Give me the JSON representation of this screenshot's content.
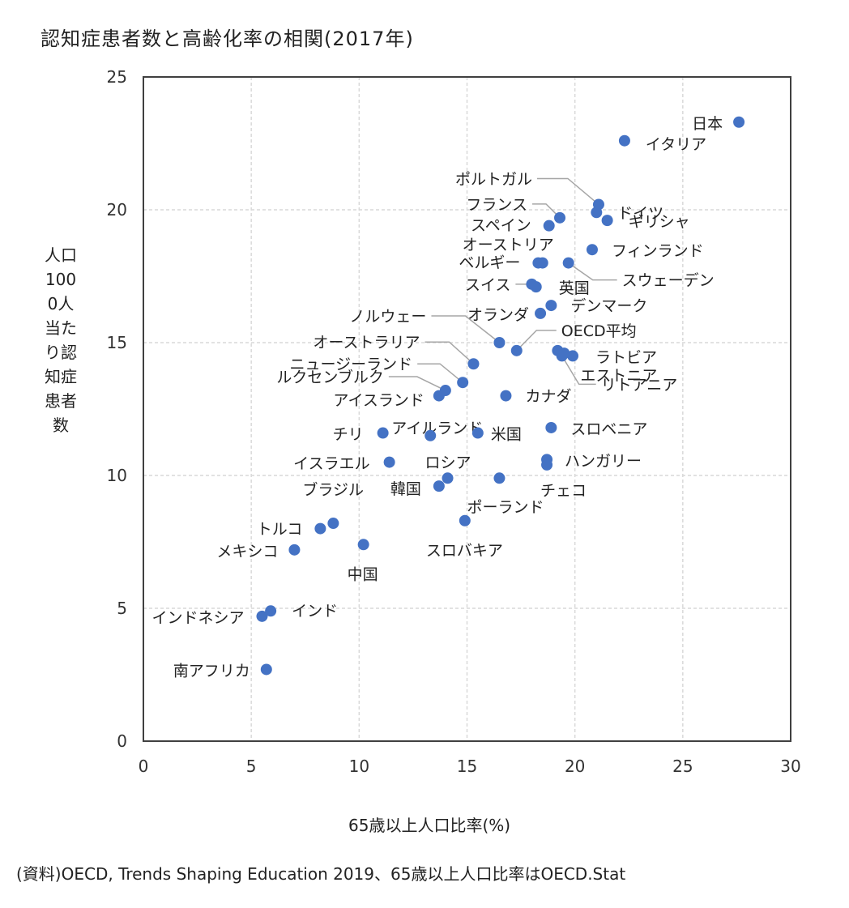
{
  "chart_data": {
    "type": "scatter",
    "title": "認知症患者数と高齢化率の相関(2017年)",
    "xlabel": "65歳以上人口比率(%)",
    "ylabel": "人口1000人当たり認知症患者数",
    "source": "(資料)OECD, Trends Shaping Education 2019、65歳以上人口比率はOECD.Stat",
    "xlim": [
      0,
      30
    ],
    "ylim": [
      0,
      25
    ],
    "xticks": [
      0,
      5,
      10,
      15,
      20,
      25,
      30
    ],
    "yticks": [
      0,
      5,
      10,
      15,
      20,
      25
    ],
    "grid": true,
    "marker_color": "#4472c4",
    "points": [
      {
        "label": "日本",
        "x": 27.6,
        "y": 23.3
      },
      {
        "label": "イタリア",
        "x": 22.3,
        "y": 22.6
      },
      {
        "label": "ポルトガル",
        "x": 21.1,
        "y": 20.2
      },
      {
        "label": "ドイツ",
        "x": 21.0,
        "y": 19.9
      },
      {
        "label": "ギリシャ",
        "x": 21.5,
        "y": 19.6
      },
      {
        "label": "フランス",
        "x": 19.3,
        "y": 19.7
      },
      {
        "label": "スペイン",
        "x": 18.8,
        "y": 19.4
      },
      {
        "label": "フィンランド",
        "x": 20.8,
        "y": 18.5
      },
      {
        "label": "オーストリア",
        "x": 18.5,
        "y": 18.0
      },
      {
        "label": "ベルギー",
        "x": 18.3,
        "y": 18.0
      },
      {
        "label": "スウェーデン",
        "x": 19.7,
        "y": 18.0
      },
      {
        "label": "スイス",
        "x": 18.0,
        "y": 17.2
      },
      {
        "label": "英国",
        "x": 18.2,
        "y": 17.1
      },
      {
        "label": "デンマーク",
        "x": 18.9,
        "y": 16.4
      },
      {
        "label": "オランダ",
        "x": 18.4,
        "y": 16.1
      },
      {
        "label": "ノルウェー",
        "x": 16.5,
        "y": 15.0
      },
      {
        "label": "OECD平均",
        "x": 17.3,
        "y": 14.7
      },
      {
        "label": "ラトビア",
        "x": 19.9,
        "y": 14.5
      },
      {
        "label": "リトアニア",
        "x": 19.4,
        "y": 14.5
      },
      {
        "label": "",
        "x": 19.2,
        "y": 14.7
      },
      {
        "label": "オーストラリア",
        "x": 15.3,
        "y": 14.2
      },
      {
        "label": "エストニア",
        "x": 19.5,
        "y": 14.6
      },
      {
        "label": "ニュージーランド",
        "x": 14.8,
        "y": 13.5
      },
      {
        "label": "ルクセンブルク",
        "x": 14.0,
        "y": 13.2
      },
      {
        "label": "アイスランド",
        "x": 13.7,
        "y": 13.0
      },
      {
        "label": "カナダ",
        "x": 16.8,
        "y": 13.0
      },
      {
        "label": "チリ",
        "x": 11.1,
        "y": 11.6
      },
      {
        "label": "アイルランド",
        "x": 13.3,
        "y": 11.5
      },
      {
        "label": "米国",
        "x": 15.5,
        "y": 11.6
      },
      {
        "label": "スロベニア",
        "x": 18.9,
        "y": 11.8
      },
      {
        "label": "イスラエル",
        "x": 11.4,
        "y": 10.5
      },
      {
        "label": "ハンガリー",
        "x": 18.7,
        "y": 10.6
      },
      {
        "label": "チェコ",
        "x": 18.7,
        "y": 10.4
      },
      {
        "label": "ロシア",
        "x": 14.1,
        "y": 9.9
      },
      {
        "label": "韓国",
        "x": 13.7,
        "y": 9.6
      },
      {
        "label": "ポーランド",
        "x": 16.5,
        "y": 9.9
      },
      {
        "label": "スロバキア",
        "x": 14.9,
        "y": 8.3
      },
      {
        "label": "ブラジル",
        "x": 8.8,
        "y": 8.2
      },
      {
        "label": "トルコ",
        "x": 8.2,
        "y": 8.0
      },
      {
        "label": "メキシコ",
        "x": 7.0,
        "y": 7.2
      },
      {
        "label": "中国",
        "x": 10.2,
        "y": 7.4
      },
      {
        "label": "インドネシア",
        "x": 5.5,
        "y": 4.7
      },
      {
        "label": "インド",
        "x": 5.9,
        "y": 4.9
      },
      {
        "label": "南アフリカ",
        "x": 5.7,
        "y": 2.7
      }
    ]
  }
}
